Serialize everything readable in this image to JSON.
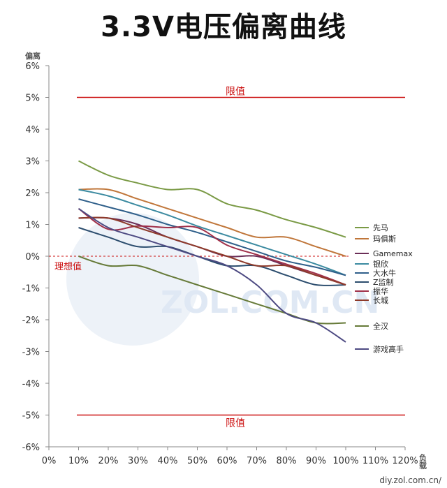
{
  "chart_data": {
    "type": "line",
    "title": "3.3V电压偏离曲线",
    "ylabel": "偏离",
    "xlabel": "负载",
    "x_ticks": [
      "0%",
      "10%",
      "20%",
      "30%",
      "40%",
      "50%",
      "60%",
      "70%",
      "80%",
      "90%",
      "100%",
      "110%",
      "120%"
    ],
    "y_ticks": [
      "6%",
      "5%",
      "4%",
      "3%",
      "2%",
      "1%",
      "0%",
      "-1%",
      "-2%",
      "-3%",
      "-4%",
      "-5%",
      "-6%"
    ],
    "xlim": [
      0,
      120
    ],
    "ylim": [
      -6,
      6
    ],
    "grid": false,
    "legend_position": "right",
    "x": [
      10,
      20,
      30,
      40,
      50,
      60,
      70,
      80,
      90,
      100
    ],
    "series": [
      {
        "name": "先马",
        "color": "#7a9a45",
        "values": [
          3.0,
          2.55,
          2.3,
          2.1,
          2.1,
          1.65,
          1.45,
          1.15,
          0.9,
          0.6
        ]
      },
      {
        "name": "玛俱斯",
        "color": "#c0763a",
        "values": [
          2.1,
          2.1,
          1.8,
          1.5,
          1.2,
          0.9,
          0.6,
          0.6,
          0.3,
          0.0
        ]
      },
      {
        "name": "Gamemax",
        "color": "#6b2e57",
        "values": [
          1.2,
          1.2,
          1.0,
          0.6,
          0.3,
          0.0,
          0.0,
          -0.3,
          -0.6,
          -0.9
        ]
      },
      {
        "name": "银欣",
        "color": "#3b8aa0",
        "values": [
          2.1,
          1.9,
          1.6,
          1.3,
          0.95,
          0.65,
          0.35,
          0.05,
          -0.25,
          -0.6
        ]
      },
      {
        "name": "大水牛",
        "color": "#2f5f8a",
        "values": [
          1.8,
          1.55,
          1.3,
          1.0,
          0.75,
          0.45,
          0.15,
          -0.15,
          -0.35,
          -0.6
        ]
      },
      {
        "name": "Z监制",
        "color": "#2c4d6e",
        "values": [
          0.9,
          0.6,
          0.3,
          0.3,
          0.0,
          -0.3,
          -0.3,
          -0.6,
          -0.9,
          -0.9
        ]
      },
      {
        "name": "振华",
        "color": "#a0304a",
        "values": [
          1.5,
          0.85,
          0.95,
          0.9,
          0.9,
          0.35,
          0.05,
          -0.25,
          -0.55,
          -0.9
        ]
      },
      {
        "name": "长城",
        "color": "#8e3a2a",
        "values": [
          1.2,
          1.2,
          0.9,
          0.6,
          0.3,
          0.0,
          -0.3,
          -0.3,
          -0.6,
          -0.9
        ]
      },
      {
        "name": "全汉",
        "color": "#667a38",
        "values": [
          0.0,
          -0.3,
          -0.3,
          -0.6,
          -0.9,
          -1.2,
          -1.5,
          -1.8,
          -2.1,
          -2.1
        ]
      },
      {
        "name": "游戏高手",
        "color": "#4d4a82",
        "values": [
          1.5,
          0.9,
          0.6,
          0.3,
          0.0,
          -0.3,
          -0.9,
          -1.8,
          -2.1,
          -2.7
        ]
      }
    ],
    "reference_lines": [
      {
        "label": "限值",
        "y": 5,
        "color": "#cc1111"
      },
      {
        "label": "限值",
        "y": -5,
        "color": "#cc1111"
      }
    ],
    "ideal_line": {
      "label": "理想值",
      "y": 0,
      "color": "#cc1111"
    }
  },
  "watermark": {
    "text": "ZOL.COM.CN"
  },
  "credit": "diy.zol.com.cn/"
}
